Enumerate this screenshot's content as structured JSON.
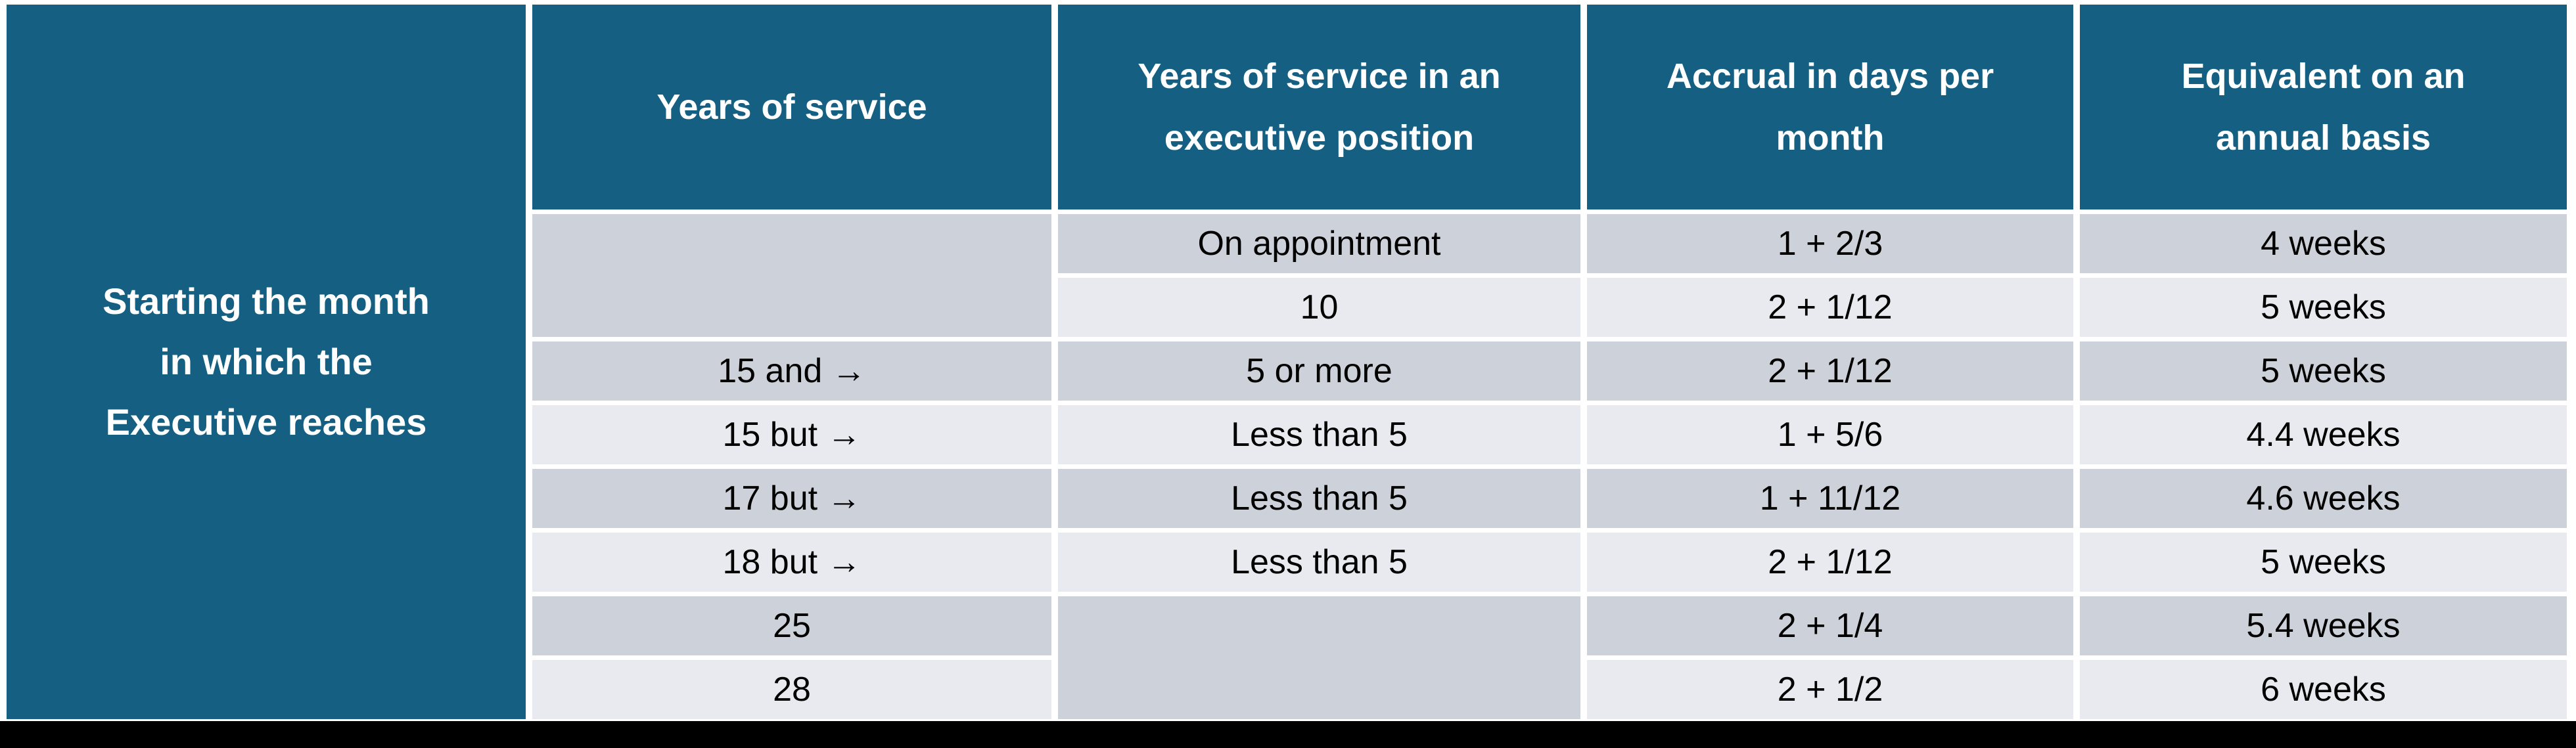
{
  "colors": {
    "header_bg": "#156082",
    "header_text": "#ffffff",
    "row_dark": "#CDD1DA",
    "row_light": "#E8EAEF",
    "body_text": "#000000",
    "page_bg": "#ffffff",
    "bottom_bar": "#000000"
  },
  "table": {
    "corner_label": "Starting the month in which the Executive reaches",
    "columns": [
      "Years of service",
      "Years of service in an executive position",
      "Accrual in days per month",
      "Equivalent on an annual basis"
    ],
    "rows": [
      {
        "years_of_service": "",
        "exec_years": "On appointment",
        "accrual": "1 + 2/3",
        "equivalent": "4 weeks"
      },
      {
        "years_of_service": "",
        "exec_years": "10",
        "accrual": "2 + 1/12",
        "equivalent": "5 weeks"
      },
      {
        "years_of_service": "15 and →",
        "exec_years": "5 or more",
        "accrual": "2 + 1/12",
        "equivalent": "5 weeks"
      },
      {
        "years_of_service": "15 but →",
        "exec_years": "Less than 5",
        "accrual": "1 + 5/6",
        "equivalent": "4.4 weeks"
      },
      {
        "years_of_service": "17 but →",
        "exec_years": "Less than 5",
        "accrual": "1 + 11/12",
        "equivalent": "4.6 weeks"
      },
      {
        "years_of_service": "18 but →",
        "exec_years": "Less than 5",
        "accrual": "2 + 1/12",
        "equivalent": "5 weeks"
      },
      {
        "years_of_service": "25",
        "exec_years": "",
        "accrual": "2 + 1/4",
        "equivalent": "5.4 weeks"
      },
      {
        "years_of_service": "28",
        "exec_years": "",
        "accrual": "2 + 1/2",
        "equivalent": "6 weeks"
      }
    ]
  }
}
